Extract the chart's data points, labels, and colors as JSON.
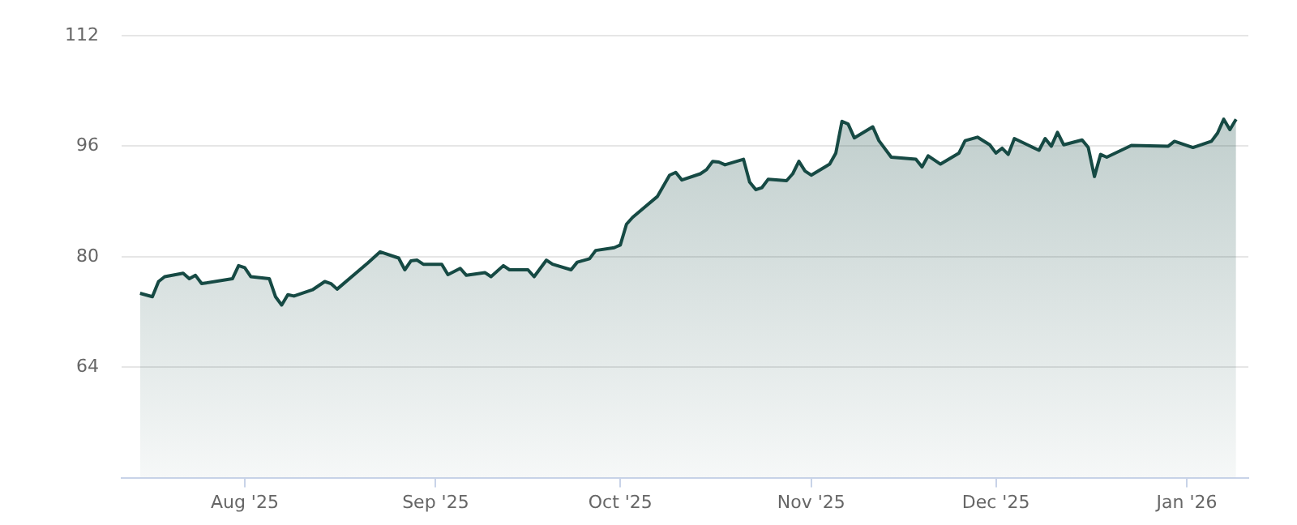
{
  "chart_data": {
    "type": "area",
    "x": [
      "2025-07-15",
      "2025-07-17",
      "2025-07-18",
      "2025-07-19",
      "2025-07-22",
      "2025-07-23",
      "2025-07-24",
      "2025-07-25",
      "2025-07-30",
      "2025-07-31",
      "2025-08-01",
      "2025-08-02",
      "2025-08-05",
      "2025-08-06",
      "2025-08-07",
      "2025-08-08",
      "2025-08-09",
      "2025-08-12",
      "2025-08-14",
      "2025-08-15",
      "2025-08-16",
      "2025-08-21",
      "2025-08-23",
      "2025-08-26",
      "2025-08-27",
      "2025-08-28",
      "2025-08-29",
      "2025-08-30",
      "2025-09-02",
      "2025-09-03",
      "2025-09-05",
      "2025-09-06",
      "2025-09-09",
      "2025-09-10",
      "2025-09-12",
      "2025-09-13",
      "2025-09-16",
      "2025-09-17",
      "2025-09-19",
      "2025-09-20",
      "2025-09-23",
      "2025-09-24",
      "2025-09-26",
      "2025-09-27",
      "2025-09-30",
      "2025-10-01",
      "2025-10-02",
      "2025-10-03",
      "2025-10-07",
      "2025-10-09",
      "2025-10-10",
      "2025-10-11",
      "2025-10-14",
      "2025-10-15",
      "2025-10-16",
      "2025-10-17",
      "2025-10-18",
      "2025-10-21",
      "2025-10-22",
      "2025-10-23",
      "2025-10-24",
      "2025-10-25",
      "2025-10-28",
      "2025-10-29",
      "2025-10-30",
      "2025-10-31",
      "2025-11-01",
      "2025-11-04",
      "2025-11-05",
      "2025-11-06",
      "2025-11-07",
      "2025-11-08",
      "2025-11-11",
      "2025-11-12",
      "2025-11-14",
      "2025-11-18",
      "2025-11-19",
      "2025-11-20",
      "2025-11-22",
      "2025-11-25",
      "2025-11-26",
      "2025-11-28",
      "2025-11-30",
      "2025-12-01",
      "2025-12-02",
      "2025-12-03",
      "2025-12-04",
      "2025-12-08",
      "2025-12-09",
      "2025-12-10",
      "2025-12-11",
      "2025-12-12",
      "2025-12-15",
      "2025-12-16",
      "2025-12-17",
      "2025-12-18",
      "2025-12-19",
      "2025-12-23",
      "2025-12-29",
      "2025-12-30",
      "2026-01-02",
      "2026-01-05",
      "2026-01-06",
      "2026-01-07",
      "2026-01-08",
      "2026-01-09"
    ],
    "series": [
      {
        "color": "#164a44",
        "values": [
          74.7,
          74.2,
          76.4,
          77.1,
          77.6,
          76.8,
          77.3,
          76.1,
          76.8,
          78.7,
          78.4,
          77.1,
          76.8,
          74.2,
          73.0,
          74.5,
          74.3,
          75.2,
          76.4,
          76.1,
          75.3,
          79.1,
          80.7,
          79.8,
          78.1,
          79.4,
          79.5,
          78.9,
          78.9,
          77.4,
          78.3,
          77.3,
          77.7,
          77.1,
          78.7,
          78.1,
          78.1,
          77.1,
          79.5,
          78.9,
          78.1,
          79.2,
          79.7,
          80.9,
          81.3,
          81.7,
          84.7,
          85.7,
          88.7,
          91.8,
          92.2,
          91.1,
          92.0,
          92.6,
          93.8,
          93.7,
          93.3,
          94.1,
          90.8,
          89.7,
          90.0,
          91.2,
          91.0,
          92.0,
          93.8,
          92.4,
          91.8,
          93.4,
          95.0,
          99.6,
          99.2,
          97.2,
          98.8,
          96.8,
          94.4,
          94.1,
          93.0,
          94.6,
          93.4,
          95.0,
          96.8,
          97.3,
          96.2,
          95.0,
          95.7,
          94.8,
          97.1,
          95.4,
          97.1,
          96.0,
          98.0,
          96.2,
          96.9,
          95.8,
          91.6,
          94.8,
          94.4,
          96.1,
          96.0,
          96.7,
          95.8,
          96.7,
          97.9,
          99.9,
          98.4,
          99.9
        ]
      }
    ],
    "xlim": [
      "2025-07-12",
      "2026-01-11"
    ],
    "xticks": [
      {
        "value": "2025-08-01",
        "label": "Aug '25"
      },
      {
        "value": "2025-09-01",
        "label": "Sep '25"
      },
      {
        "value": "2025-10-01",
        "label": "Oct '25"
      },
      {
        "value": "2025-11-01",
        "label": "Nov '25"
      },
      {
        "value": "2025-12-01",
        "label": "Dec '25"
      },
      {
        "value": "2026-01-01",
        "label": "Jan '26"
      }
    ],
    "ylim": [
      48,
      112
    ],
    "yticks": [
      64,
      80,
      96,
      112
    ],
    "grid": "y",
    "marker": "none",
    "line_style": "solid"
  }
}
